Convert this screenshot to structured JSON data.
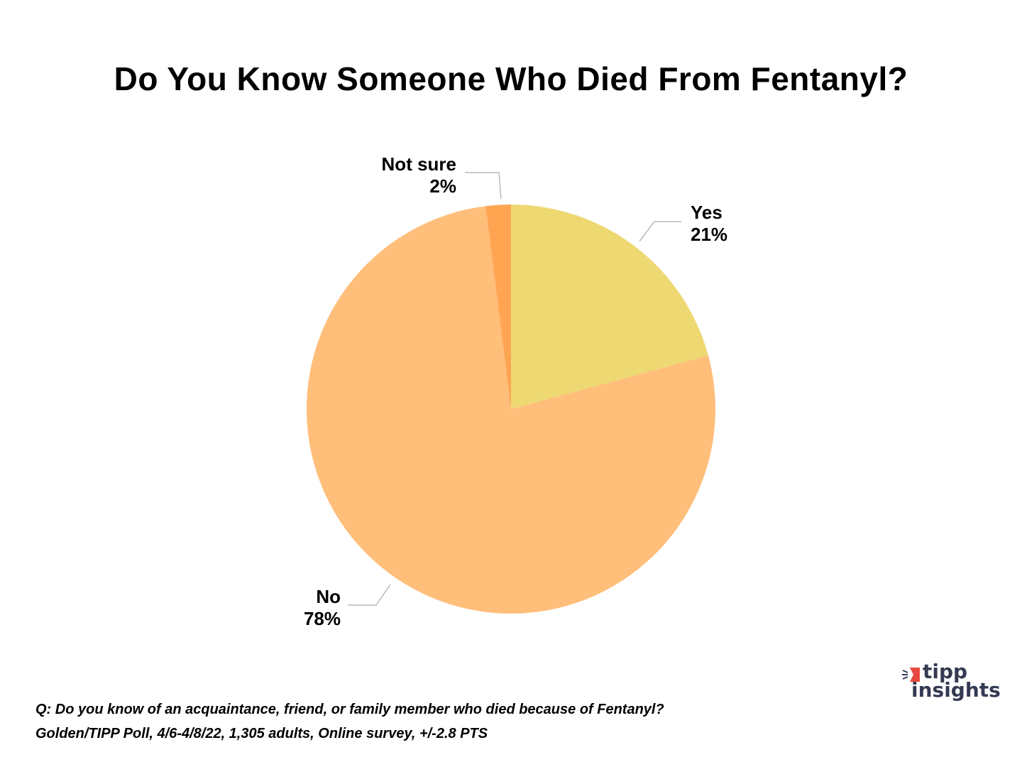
{
  "chart_data": {
    "type": "pie",
    "title": "Do You Know Someone Who Died From Fentanyl?",
    "slices": [
      {
        "label": "Yes",
        "value": 21,
        "value_label": "21%",
        "color": "#EDD872"
      },
      {
        "label": "No",
        "value": 78,
        "value_label": "78%",
        "color": "#FFBE7A"
      },
      {
        "label": "Not sure",
        "value": 2,
        "value_label": "2%",
        "color": "#FFA552"
      }
    ]
  },
  "footer": {
    "question": "Q: Do you know of an acquaintance, friend, or family member who died because of Fentanyl?",
    "source": "Golden/TIPP Poll, 4/6-4/8/22, 1,305 adults, Online survey, +/-2.8 PTS"
  },
  "logo": {
    "line1": "tipp",
    "line2": "insights",
    "accent": "#E8473F",
    "text_color": "#343A52"
  }
}
